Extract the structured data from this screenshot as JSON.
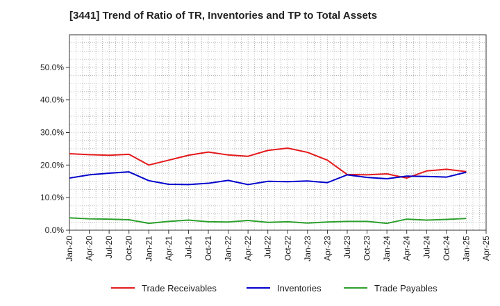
{
  "chart_data": {
    "type": "line",
    "title": "[3441]  Trend of Ratio of TR, Inventories and TP to Total Assets",
    "xlabel": "",
    "ylabel": "",
    "ylim": [
      0,
      60
    ],
    "y_ticks": [
      0,
      10,
      20,
      30,
      40,
      50
    ],
    "y_tick_labels": [
      "0.0%",
      "10.0%",
      "20.0%",
      "30.0%",
      "40.0%",
      "50.0%"
    ],
    "x_tick_labels": [
      "Jan-20",
      "Apr-20",
      "Jul-20",
      "Oct-20",
      "Jan-21",
      "Apr-21",
      "Jul-21",
      "Oct-21",
      "Jan-22",
      "Apr-22",
      "Jul-22",
      "Oct-22",
      "Jan-23",
      "Apr-23",
      "Jul-23",
      "Oct-23",
      "Jan-24",
      "Apr-24",
      "Jul-24",
      "Oct-24",
      "Jan-25",
      "Apr-25"
    ],
    "x": [
      "Jan-20",
      "Apr-20",
      "Jul-20",
      "Oct-20",
      "Jan-21",
      "Apr-21",
      "Jul-21",
      "Oct-21",
      "Jan-22",
      "Apr-22",
      "Jul-22",
      "Oct-22",
      "Jan-23",
      "Apr-23",
      "Jul-23",
      "Oct-23",
      "Jan-24",
      "Apr-24",
      "Jul-24",
      "Oct-24",
      "Jan-25"
    ],
    "grid": true,
    "legend_position": "bottom",
    "series": [
      {
        "name": "Trade Receivables",
        "color": "#e41a1c",
        "values": [
          23.5,
          23.2,
          23.0,
          23.3,
          20.0,
          21.5,
          23.0,
          24.0,
          23.1,
          22.7,
          24.5,
          25.2,
          23.9,
          21.5,
          17.1,
          17.0,
          17.3,
          16.0,
          18.2,
          18.7,
          18.0
        ]
      },
      {
        "name": "Inventories",
        "color": "#0000cc",
        "values": [
          16.0,
          17.0,
          17.5,
          17.9,
          15.2,
          14.1,
          14.0,
          14.4,
          15.3,
          14.0,
          15.0,
          14.9,
          15.1,
          14.6,
          17.0,
          16.2,
          15.8,
          16.6,
          16.5,
          16.3,
          17.8
        ]
      },
      {
        "name": "Trade Payables",
        "color": "#2ca02c",
        "values": [
          3.8,
          3.5,
          3.4,
          3.2,
          2.1,
          2.7,
          3.1,
          2.6,
          2.5,
          3.0,
          2.4,
          2.6,
          2.2,
          2.5,
          2.7,
          2.7,
          2.1,
          3.4,
          3.1,
          3.3,
          3.6
        ]
      }
    ]
  }
}
